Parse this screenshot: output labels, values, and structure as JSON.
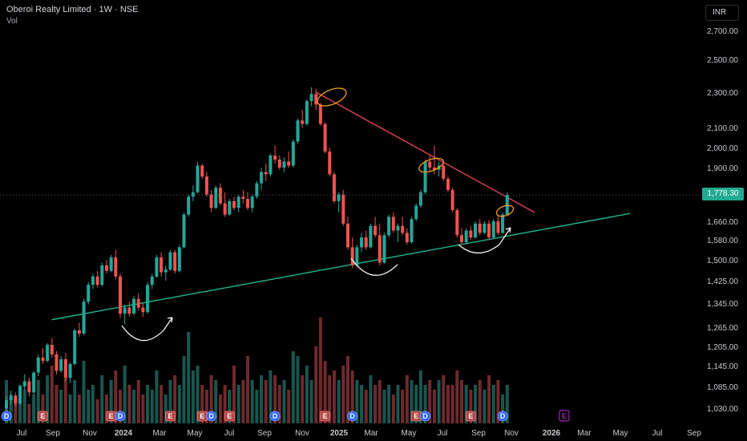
{
  "header": {
    "symbol_title": "Oberoi Realty Limited · 1W · NSE",
    "indicator_label": "Vol",
    "currency_label": "INR"
  },
  "price_tag": {
    "value_label": "1,778.30",
    "color": "#22ab94"
  },
  "colors": {
    "up": "#26a69a",
    "down": "#ef5350",
    "trendline_support": "#1fb892",
    "trendline_resistance": "#e0445a",
    "annotation": "#f29a1c",
    "arc": "#ffffff",
    "event_dividend": "#2962ff",
    "event_earnings": "#b54848",
    "event_future": "#9c27b0"
  },
  "chart_data": {
    "type": "candlestick",
    "title": "Oberoi Realty Limited · 1W · NSE",
    "yaxis_ticks": [
      1030,
      1085,
      1145,
      1205,
      1265,
      1345,
      1425,
      1500,
      1580,
      1660,
      1900,
      2000,
      2100,
      2300,
      2500,
      2700
    ],
    "yaxis_tick_labels": [
      "1,030.00",
      "1,085.00",
      "1,145.00",
      "1,205.00",
      "1,265.00",
      "1,345.00",
      "1,425.00",
      "1,500.00",
      "1,580.00",
      "1,660.00",
      "1,900.00",
      "2,000.00",
      "2,100.00",
      "2,300.00",
      "2,500.00",
      "2,700.00"
    ],
    "xaxis_labels": [
      "Jul",
      "Sep",
      "Nov",
      "2024",
      "Mar",
      "May",
      "Jul",
      "Sep",
      "Nov",
      "2025",
      "Mar",
      "May",
      "Jul",
      "Sep",
      "Nov",
      "2026",
      "Mar",
      "May",
      "Jul",
      "Sep"
    ],
    "last_price": 1778.3,
    "candles": [
      [
        1030,
        1060,
        1022,
        1050
      ],
      [
        1050,
        1075,
        1040,
        1062
      ],
      [
        1062,
        1070,
        1035,
        1042
      ],
      [
        1042,
        1090,
        1038,
        1085
      ],
      [
        1085,
        1120,
        1075,
        1100
      ],
      [
        1100,
        1110,
        1060,
        1070
      ],
      [
        1070,
        1130,
        1065,
        1125
      ],
      [
        1125,
        1180,
        1115,
        1170
      ],
      [
        1170,
        1200,
        1150,
        1160
      ],
      [
        1160,
        1215,
        1155,
        1210
      ],
      [
        1210,
        1230,
        1170,
        1180
      ],
      [
        1180,
        1190,
        1120,
        1130
      ],
      [
        1130,
        1175,
        1125,
        1165
      ],
      [
        1165,
        1185,
        1100,
        1110
      ],
      [
        1110,
        1155,
        1095,
        1150
      ],
      [
        1150,
        1260,
        1145,
        1255
      ],
      [
        1255,
        1280,
        1235,
        1245
      ],
      [
        1245,
        1360,
        1240,
        1350
      ],
      [
        1350,
        1420,
        1340,
        1410
      ],
      [
        1410,
        1450,
        1395,
        1440
      ],
      [
        1440,
        1460,
        1400,
        1410
      ],
      [
        1410,
        1490,
        1405,
        1480
      ],
      [
        1480,
        1500,
        1450,
        1460
      ],
      [
        1460,
        1520,
        1455,
        1510
      ],
      [
        1510,
        1540,
        1430,
        1440
      ],
      [
        1440,
        1450,
        1295,
        1310
      ],
      [
        1310,
        1340,
        1275,
        1330
      ],
      [
        1330,
        1350,
        1300,
        1310
      ],
      [
        1310,
        1370,
        1305,
        1360
      ],
      [
        1360,
        1380,
        1320,
        1330
      ],
      [
        1330,
        1345,
        1300,
        1315
      ],
      [
        1315,
        1420,
        1310,
        1410
      ],
      [
        1410,
        1450,
        1395,
        1440
      ],
      [
        1440,
        1520,
        1435,
        1510
      ],
      [
        1510,
        1530,
        1440,
        1455
      ],
      [
        1455,
        1480,
        1425,
        1465
      ],
      [
        1465,
        1540,
        1460,
        1530
      ],
      [
        1530,
        1540,
        1450,
        1460
      ],
      [
        1460,
        1560,
        1455,
        1550
      ],
      [
        1550,
        1700,
        1545,
        1690
      ],
      [
        1690,
        1780,
        1680,
        1770
      ],
      [
        1770,
        1820,
        1750,
        1790
      ],
      [
        1790,
        1930,
        1785,
        1910
      ],
      [
        1910,
        1920,
        1850,
        1860
      ],
      [
        1860,
        1880,
        1770,
        1780
      ],
      [
        1780,
        1800,
        1700,
        1720
      ],
      [
        1720,
        1820,
        1715,
        1810
      ],
      [
        1810,
        1830,
        1730,
        1740
      ],
      [
        1740,
        1790,
        1680,
        1690
      ],
      [
        1690,
        1760,
        1685,
        1750
      ],
      [
        1750,
        1770,
        1710,
        1720
      ],
      [
        1720,
        1780,
        1700,
        1770
      ],
      [
        1770,
        1800,
        1740,
        1760
      ],
      [
        1760,
        1790,
        1710,
        1720
      ],
      [
        1720,
        1780,
        1700,
        1770
      ],
      [
        1770,
        1840,
        1760,
        1830
      ],
      [
        1830,
        1900,
        1800,
        1880
      ],
      [
        1880,
        1920,
        1840,
        1870
      ],
      [
        1870,
        1970,
        1860,
        1960
      ],
      [
        1960,
        2010,
        1920,
        1940
      ],
      [
        1940,
        1960,
        1890,
        1900
      ],
      [
        1900,
        1950,
        1880,
        1930
      ],
      [
        1930,
        1980,
        1900,
        1910
      ],
      [
        1910,
        2040,
        1900,
        2030
      ],
      [
        2030,
        2150,
        2020,
        2140
      ],
      [
        2140,
        2200,
        2100,
        2120
      ],
      [
        2120,
        2260,
        2110,
        2250
      ],
      [
        2250,
        2330,
        2220,
        2290
      ],
      [
        2290,
        2320,
        2200,
        2230
      ],
      [
        2230,
        2240,
        2110,
        2120
      ],
      [
        2120,
        2130,
        1970,
        1980
      ],
      [
        1980,
        2000,
        1860,
        1870
      ],
      [
        1870,
        1880,
        1740,
        1750
      ],
      [
        1750,
        1790,
        1700,
        1780
      ],
      [
        1780,
        1800,
        1640,
        1650
      ],
      [
        1650,
        1680,
        1540,
        1550
      ],
      [
        1550,
        1590,
        1470,
        1480
      ],
      [
        1480,
        1560,
        1475,
        1550
      ],
      [
        1550,
        1610,
        1530,
        1590
      ],
      [
        1590,
        1620,
        1540,
        1550
      ],
      [
        1550,
        1650,
        1545,
        1640
      ],
      [
        1640,
        1680,
        1590,
        1600
      ],
      [
        1600,
        1650,
        1480,
        1490
      ],
      [
        1490,
        1610,
        1485,
        1600
      ],
      [
        1600,
        1690,
        1590,
        1680
      ],
      [
        1680,
        1700,
        1610,
        1620
      ],
      [
        1620,
        1650,
        1570,
        1640
      ],
      [
        1640,
        1680,
        1600,
        1610
      ],
      [
        1610,
        1630,
        1560,
        1570
      ],
      [
        1570,
        1680,
        1565,
        1670
      ],
      [
        1670,
        1740,
        1660,
        1730
      ],
      [
        1730,
        1800,
        1720,
        1790
      ],
      [
        1790,
        1940,
        1780,
        1930
      ],
      [
        1930,
        1960,
        1880,
        1900
      ],
      [
        1900,
        2010,
        1870,
        1890
      ],
      [
        1890,
        1930,
        1860,
        1910
      ],
      [
        1910,
        1920,
        1840,
        1850
      ],
      [
        1850,
        1860,
        1790,
        1800
      ],
      [
        1800,
        1810,
        1700,
        1710
      ],
      [
        1710,
        1720,
        1590,
        1600
      ],
      [
        1600,
        1630,
        1560,
        1570
      ],
      [
        1570,
        1630,
        1565,
        1620
      ],
      [
        1620,
        1640,
        1580,
        1590
      ],
      [
        1590,
        1660,
        1585,
        1650
      ],
      [
        1650,
        1670,
        1600,
        1610
      ],
      [
        1610,
        1660,
        1605,
        1650
      ],
      [
        1650,
        1665,
        1580,
        1590
      ],
      [
        1590,
        1670,
        1585,
        1660
      ],
      [
        1660,
        1690,
        1600,
        1610
      ],
      [
        1610,
        1700,
        1605,
        1690
      ],
      [
        1690,
        1790,
        1685,
        1778.3
      ]
    ],
    "volume": [
      45,
      30,
      25,
      40,
      35,
      20,
      30,
      45,
      30,
      50,
      60,
      40,
      35,
      55,
      30,
      45,
      30,
      65,
      35,
      40,
      25,
      50,
      30,
      45,
      55,
      35,
      60,
      40,
      35,
      45,
      30,
      40,
      35,
      55,
      40,
      30,
      45,
      50,
      40,
      70,
      95,
      55,
      60,
      40,
      35,
      50,
      45,
      30,
      40,
      35,
      60,
      40,
      45,
      70,
      45,
      35,
      50,
      45,
      55,
      50,
      40,
      45,
      35,
      75,
      70,
      50,
      60,
      45,
      80,
      110,
      65,
      50,
      55,
      45,
      60,
      70,
      55,
      45,
      40,
      35,
      50,
      40,
      45,
      35,
      40,
      30,
      40,
      35,
      50,
      45,
      40,
      55,
      40,
      45,
      35,
      45,
      50,
      40,
      40,
      55,
      45,
      40,
      35,
      40,
      45,
      35,
      50,
      40,
      45,
      30,
      40
    ],
    "event_markers": [
      {
        "type": "D",
        "date_index": 0
      },
      {
        "type": "E",
        "date_index": 8
      },
      {
        "type": "E",
        "date_index": 23
      },
      {
        "type": "D",
        "date_index": 25
      },
      {
        "type": "E",
        "date_index": 36
      },
      {
        "type": "E",
        "date_index": 43
      },
      {
        "type": "D",
        "date_index": 45
      },
      {
        "type": "E",
        "date_index": 49
      },
      {
        "type": "D",
        "date_index": 59
      },
      {
        "type": "E",
        "date_index": 70
      },
      {
        "type": "D",
        "date_index": 76
      },
      {
        "type": "E",
        "date_index": 90
      },
      {
        "type": "D",
        "date_index": 92
      },
      {
        "type": "E",
        "date_index": 102
      },
      {
        "type": "D",
        "date_index": 109
      }
    ],
    "trendlines": [
      {
        "name": "support",
        "color": "#1fb892",
        "from_index": 10,
        "from_price": 1290,
        "to_index": 137,
        "to_price": 1695
      },
      {
        "name": "resistance",
        "color": "#e0445a",
        "from_index": 68,
        "from_price": 2300,
        "to_index": 116,
        "to_price": 1700
      }
    ]
  }
}
